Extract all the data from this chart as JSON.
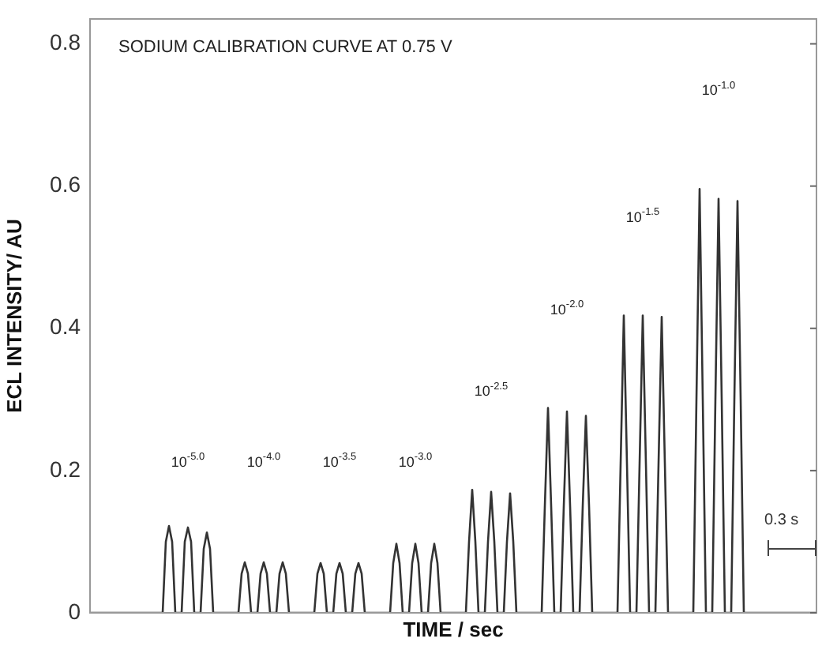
{
  "chart_data": {
    "type": "line",
    "title": "SODIUM CALIBRATION CURVE AT 0.75 V",
    "xlabel": "TIME / sec",
    "ylabel": "ECL INTENSITY/ AU",
    "categories": [
      null,
      null,
      null,
      null,
      null,
      null,
      null,
      null,
      null,
      null,
      null,
      null,
      null,
      null,
      null,
      null,
      null,
      null,
      null,
      null,
      null,
      null,
      null,
      null,
      null,
      null,
      null,
      null,
      null,
      null,
      null,
      null,
      null,
      null,
      null,
      null,
      null,
      null,
      null,
      null,
      null,
      null,
      null,
      null,
      null,
      null,
      null,
      null,
      null,
      null,
      null,
      null,
      null,
      null,
      null,
      null,
      null,
      null,
      null,
      null,
      null,
      null,
      null,
      null,
      null,
      null,
      null,
      null,
      null,
      null,
      null,
      null,
      null,
      null,
      null,
      null,
      null,
      null,
      null,
      null,
      null,
      null,
      null,
      null,
      null,
      null,
      null,
      null,
      null,
      null,
      null,
      null,
      null,
      null,
      null,
      null,
      null,
      null,
      null,
      null,
      null,
      null,
      null,
      null,
      null,
      null,
      null,
      null,
      null,
      null,
      null,
      null,
      null,
      null,
      null,
      null,
      null,
      null,
      null,
      null,
      null,
      null,
      null,
      null,
      null,
      null,
      null,
      null,
      null,
      null,
      null,
      null,
      null,
      null,
      null,
      null,
      null,
      null,
      null,
      null,
      null,
      null,
      null,
      null,
      null,
      null,
      null,
      null,
      null,
      null,
      null,
      null,
      null,
      null,
      null,
      null,
      null,
      null,
      null,
      null,
      null,
      null,
      null,
      null,
      null,
      null,
      null,
      null,
      null,
      null,
      null,
      null,
      null,
      null,
      null,
      null,
      null,
      null,
      null,
      null,
      null,
      null,
      null,
      null,
      null,
      null,
      null,
      null,
      null,
      null,
      null,
      null,
      null,
      null,
      null,
      null,
      null,
      null,
      null,
      null,
      null,
      null,
      null,
      null,
      null,
      null,
      null,
      null,
      null,
      null,
      null,
      null,
      null,
      null,
      null,
      null,
      null,
      null,
      null,
      null,
      null,
      null,
      null,
      null,
      null,
      null,
      null,
      null,
      null,
      null,
      null
    ],
    "values": [
      0,
      0,
      0,
      0,
      0,
      0,
      0,
      0,
      0,
      0,
      0,
      0,
      0,
      0,
      0,
      0,
      0,
      0,
      0,
      0,
      0,
      0,
      0,
      0,
      0.1,
      0.122,
      0.1,
      0,
      0,
      0,
      0.1,
      0.12,
      0.1,
      0,
      0,
      0,
      0.09,
      0.113,
      0.09,
      0,
      0,
      0,
      0,
      0,
      0,
      0,
      0,
      0,
      0.055,
      0.071,
      0.055,
      0,
      0,
      0,
      0.055,
      0.071,
      0.055,
      0,
      0,
      0,
      0.055,
      0.071,
      0.055,
      0,
      0,
      0,
      0,
      0,
      0,
      0,
      0,
      0,
      0.055,
      0.07,
      0.055,
      0,
      0,
      0,
      0.055,
      0.07,
      0.055,
      0,
      0,
      0,
      0.055,
      0.07,
      0.055,
      0,
      0,
      0,
      0,
      0,
      0,
      0,
      0,
      0,
      0.07,
      0.097,
      0.07,
      0,
      0,
      0,
      0.07,
      0.097,
      0.07,
      0,
      0,
      0,
      0.07,
      0.097,
      0.07,
      0,
      0,
      0,
      0,
      0,
      0,
      0,
      0,
      0,
      0.1,
      0.173,
      0.1,
      0,
      0,
      0,
      0.1,
      0.17,
      0.1,
      0,
      0,
      0,
      0.1,
      0.168,
      0.1,
      0,
      0,
      0,
      0,
      0,
      0,
      0,
      0,
      0,
      0.15,
      0.288,
      0.15,
      0,
      0,
      0,
      0.15,
      0.283,
      0.15,
      0,
      0,
      0,
      0.15,
      0.277,
      0.15,
      0,
      0,
      0,
      0,
      0,
      0,
      0,
      0,
      0,
      0.21,
      0.418,
      0.21,
      0,
      0,
      0,
      0.21,
      0.418,
      0.21,
      0,
      0,
      0,
      0.21,
      0.416,
      0.21,
      0,
      0,
      0,
      0,
      0,
      0,
      0,
      0,
      0,
      0.3,
      0.596,
      0.3,
      0,
      0,
      0,
      0.3,
      0.582,
      0.3,
      0,
      0,
      0,
      0.3,
      0.579,
      0.3,
      0,
      0,
      0,
      0,
      0,
      0,
      0,
      0,
      0,
      0,
      0,
      0,
      0,
      0,
      0,
      0,
      0,
      0,
      0,
      0,
      0,
      0,
      0,
      0
    ],
    "color": "#333333",
    "ylim": [
      0,
      0.835
    ],
    "yticks": [
      0,
      0.2,
      0.4,
      0.6,
      0.8
    ],
    "tick_labels": "y",
    "marker": "none",
    "annotations": [
      "10$^{-5.0}$",
      "10$^{-4.0}$",
      "10$^{-3.5}$",
      "10$^{-3.0}$",
      "10$^{-2.5}$",
      "10$^{-2.0}$",
      "10$^{-1.5}$",
      "10$^{-1.0}$",
      "0.3 s"
    ]
  }
}
